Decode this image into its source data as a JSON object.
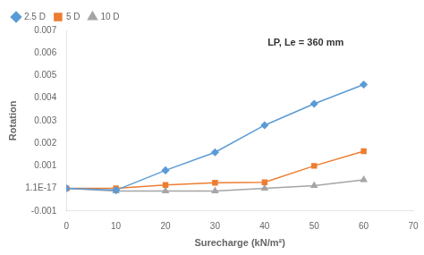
{
  "chart_data": {
    "type": "line",
    "x": [
      0,
      10,
      20,
      30,
      40,
      50,
      60
    ],
    "series": [
      {
        "name": "2.5 D",
        "color": "#5B9BD5",
        "marker": "diamond",
        "values": [
          1.1e-17,
          -8e-05,
          0.0008,
          0.0016,
          0.0028,
          0.00375,
          0.0046
        ]
      },
      {
        "name": "5 D",
        "color": "#ED7D31",
        "marker": "square",
        "values": [
          1.1e-17,
          1.1e-17,
          0.00015,
          0.00025,
          0.00027,
          0.001,
          0.00165
        ]
      },
      {
        "name": "10 D",
        "color": "#A5A5A5",
        "marker": "triangle",
        "values": [
          1.1e-17,
          -0.00012,
          -0.00012,
          -0.00012,
          1.1e-17,
          0.00012,
          0.00038
        ]
      }
    ],
    "x_label": "Surecharge (kN/m²)",
    "y_label": "Rotation",
    "annotations": [
      "LP, Le = 360 mm"
    ],
    "xlim": [
      0,
      70
    ],
    "xticks": [
      0,
      10,
      20,
      30,
      40,
      50,
      60,
      70
    ],
    "ylim": [
      -0.001,
      0.007
    ],
    "yticks": [
      -0.001,
      {
        "value": 0,
        "label": "1.1E-17"
      },
      0.001,
      0.002,
      0.003,
      0.004,
      0.005,
      0.006,
      0.007
    ],
    "legend": "upper left",
    "grid": false
  }
}
